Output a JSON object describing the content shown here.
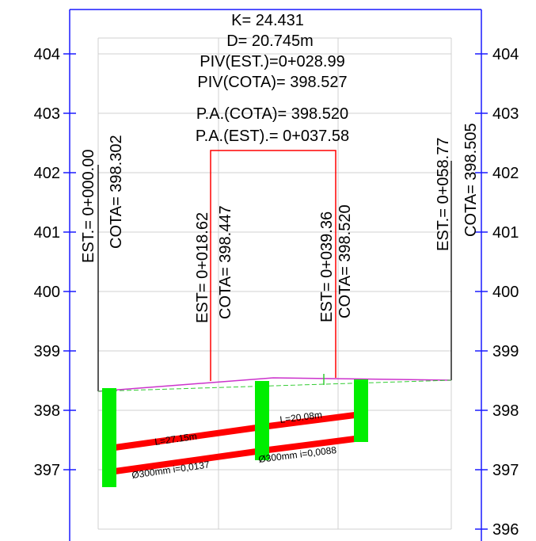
{
  "header": {
    "line1": "K=  24.431",
    "line2": "D=  20.745m",
    "line3": "PIV(EST.)=0+028.99",
    "line4": "PIV(COTA)=  398.527",
    "line5": "P.A.(COTA)=  398.520",
    "line6": "P.A.(EST).=  0+037.58"
  },
  "elevation_axis": {
    "ticks": [
      "404",
      "403",
      "402",
      "401",
      "400",
      "399",
      "398",
      "397",
      "396"
    ]
  },
  "stations": [
    {
      "est": "EST.=  0+000.00",
      "cota": "COTA=   398.302"
    },
    {
      "est": "EST=  0+018.62",
      "cota": "COTA=  398.447"
    },
    {
      "est": "EST=  0+039.36",
      "cota": "COTA=  398.520"
    },
    {
      "est": "EST.=  0+058.77",
      "cota": "COTA=   398.505"
    }
  ],
  "pipes": [
    {
      "length": "L=27.15m",
      "spec": "Ø300mm  i=0,0137"
    },
    {
      "length": "L=20.08m",
      "spec": "Ø300mm  i=0,0088"
    }
  ],
  "colors": {
    "frame": "#1a1aff",
    "grid": "#d0d0d0",
    "pipe": "#ff0000",
    "manhole": "#00ee00",
    "curve_box": "#ff0000",
    "terrain": "#cc33cc",
    "ground_line": "#33cc33"
  }
}
